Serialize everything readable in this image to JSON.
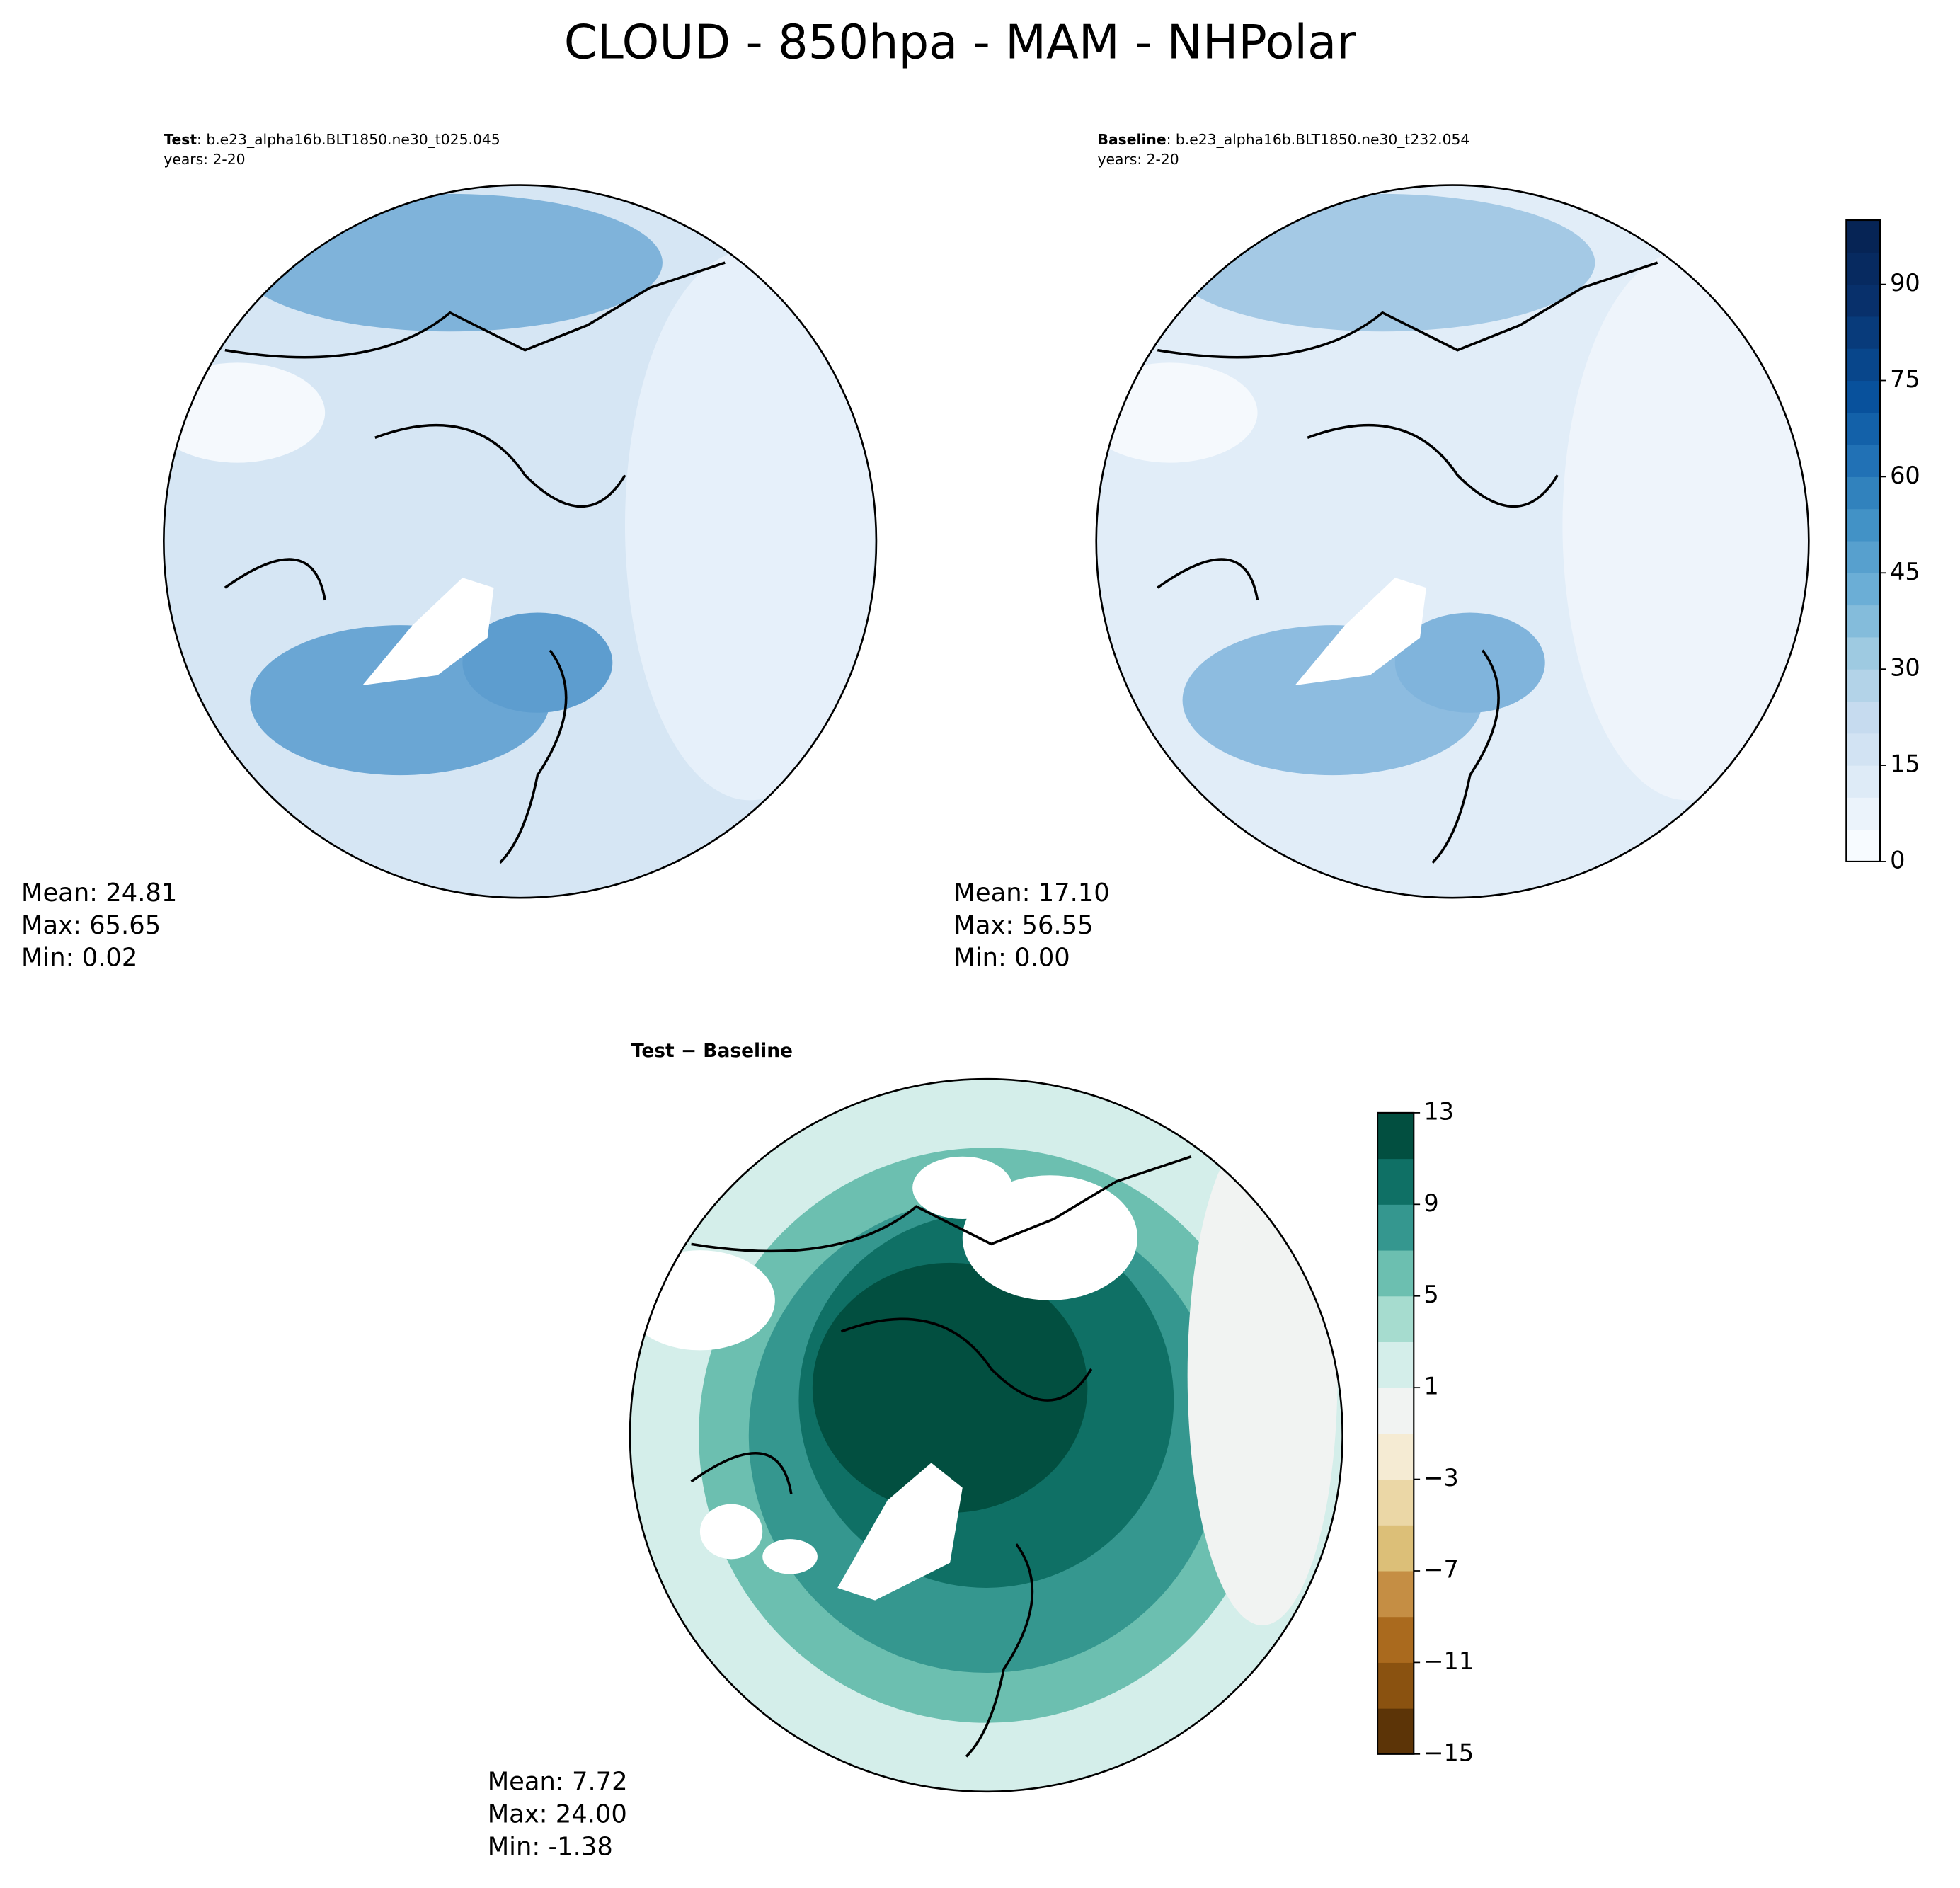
{
  "title": "CLOUD - 850hpa - MAM - NHPolar",
  "panels": [
    {
      "label": "Test",
      "case": ": b.e23_alpha16b.BLT1850.ne30_t025.045",
      "years": "years: 2-20",
      "stats": [
        "Mean: 24.81",
        "Max: 65.65",
        "Min:  0.02"
      ]
    },
    {
      "label": "Baseline",
      "case": ": b.e23_alpha16b.BLT1850.ne30_t232.054",
      "years": "years: 2-20",
      "stats": [
        "Mean: 17.10",
        "Max: 56.55",
        "Min:  0.00"
      ]
    },
    {
      "label": "Test − Baseline",
      "stats": [
        "Mean:  7.72",
        "Max: 24.00",
        "Min: -1.38"
      ]
    }
  ],
  "colorbars": [
    {
      "lim": [
        0,
        100
      ],
      "ticks": [
        0,
        15,
        30,
        45,
        60,
        75,
        90
      ],
      "colors": [
        "#f7fbff",
        "#ebf3fb",
        "#deebf7",
        "#d2e3f3",
        "#c6dbef",
        "#b3d3e8",
        "#9ecae1",
        "#84bcdb",
        "#6baed6",
        "#57a0ce",
        "#4292c6",
        "#3182bd",
        "#2171b5",
        "#1361a9",
        "#08519c",
        "#08468b",
        "#083b7b",
        "#08306b",
        "#072a60",
        "#062455"
      ]
    },
    {
      "lim": [
        -15,
        13
      ],
      "ticks": [
        {
          "value": -15,
          "label": "−15"
        },
        {
          "value": -11,
          "label": "−11"
        },
        {
          "value": -7,
          "label": "−7"
        },
        {
          "value": -3,
          "label": "−3"
        },
        1,
        5,
        9,
        13
      ],
      "colors": [
        "#5c3407",
        "#8a5210",
        "#aa6a1e",
        "#c58e44",
        "#dcbf78",
        "#ebd7a6",
        "#f5ebd3",
        "#f1f3f2",
        "#d4eeea",
        "#a6dccf",
        "#6cbfb0",
        "#35978f",
        "#0f7065",
        "#024f40"
      ]
    }
  ]
}
